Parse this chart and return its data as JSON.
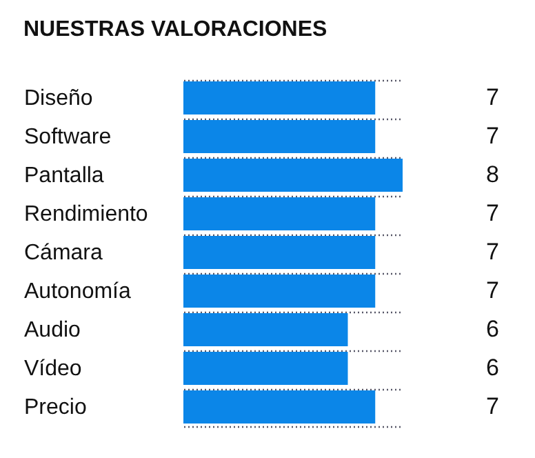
{
  "chart_data": {
    "type": "bar",
    "orientation": "horizontal",
    "title": "NUESTRAS VALORACIONES",
    "categories": [
      "Diseño",
      "Software",
      "Pantalla",
      "Rendimiento",
      "Cámara",
      "Autonomía",
      "Audio",
      "Vídeo",
      "Precio"
    ],
    "values": [
      7,
      7,
      8,
      7,
      7,
      7,
      6,
      6,
      7
    ],
    "color": "#0b86e8",
    "data_labels": true,
    "grid": "y"
  }
}
